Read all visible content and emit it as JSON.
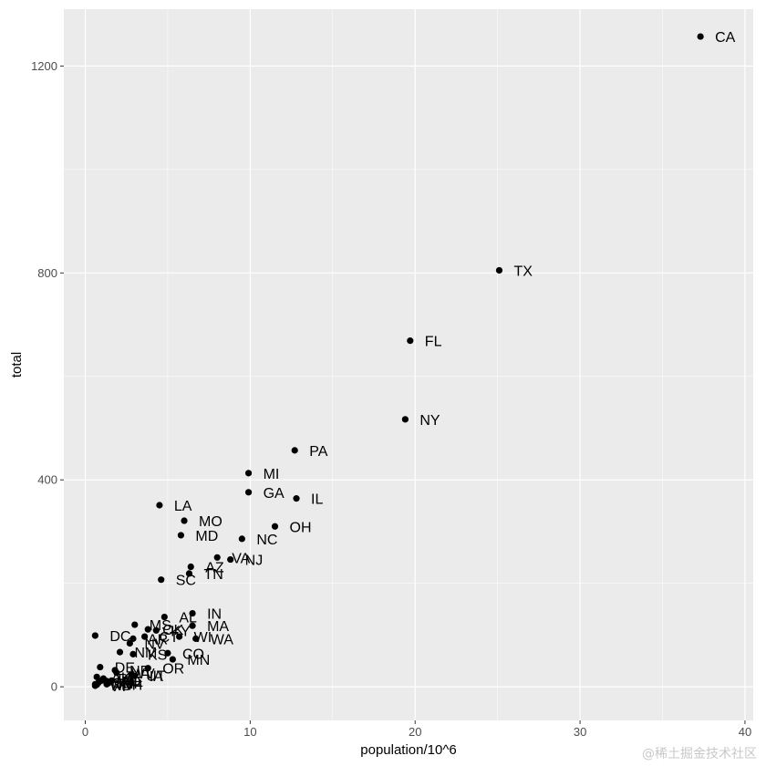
{
  "chart_data": {
    "type": "scatter",
    "xlabel": "population/10^6",
    "ylabel": "total",
    "xlim": [
      -1.3,
      40.5
    ],
    "ylim": [
      -65,
      1310
    ],
    "x_ticks": [
      0,
      10,
      20,
      30,
      40
    ],
    "y_ticks": [
      0,
      400,
      800,
      1200
    ],
    "grid": true,
    "colors": {
      "panel": "#ebebeb",
      "grid_major": "#ffffff",
      "point": "#000000"
    },
    "points": [
      {
        "label": "CA",
        "x": 37.3,
        "y": 1257
      },
      {
        "label": "TX",
        "x": 25.1,
        "y": 805
      },
      {
        "label": "FL",
        "x": 19.7,
        "y": 669
      },
      {
        "label": "NY",
        "x": 19.4,
        "y": 517
      },
      {
        "label": "PA",
        "x": 12.7,
        "y": 457
      },
      {
        "label": "MI",
        "x": 9.9,
        "y": 413
      },
      {
        "label": "GA",
        "x": 9.9,
        "y": 376
      },
      {
        "label": "IL",
        "x": 12.8,
        "y": 364
      },
      {
        "label": "LA",
        "x": 4.5,
        "y": 351
      },
      {
        "label": "MO",
        "x": 6.0,
        "y": 321
      },
      {
        "label": "OH",
        "x": 11.5,
        "y": 310
      },
      {
        "label": "MD",
        "x": 5.8,
        "y": 293
      },
      {
        "label": "NC",
        "x": 9.5,
        "y": 286
      },
      {
        "label": "VA",
        "x": 8.0,
        "y": 250
      },
      {
        "label": "NJ",
        "x": 8.8,
        "y": 246
      },
      {
        "label": "AZ",
        "x": 6.4,
        "y": 232
      },
      {
        "label": "TN",
        "x": 6.3,
        "y": 219
      },
      {
        "label": "SC",
        "x": 4.6,
        "y": 207
      },
      {
        "label": "IN",
        "x": 6.5,
        "y": 142
      },
      {
        "label": "AL",
        "x": 4.8,
        "y": 135
      },
      {
        "label": "MA",
        "x": 6.5,
        "y": 118
      },
      {
        "label": "MS",
        "x": 3.0,
        "y": 120
      },
      {
        "label": "OK",
        "x": 3.8,
        "y": 111
      },
      {
        "label": "KY",
        "x": 4.3,
        "y": 109
      },
      {
        "label": "CT",
        "x": 3.6,
        "y": 97
      },
      {
        "label": "WI",
        "x": 5.7,
        "y": 97
      },
      {
        "label": "WA",
        "x": 6.7,
        "y": 93
      },
      {
        "label": "DC",
        "x": 0.6,
        "y": 99
      },
      {
        "label": "AR",
        "x": 2.9,
        "y": 93
      },
      {
        "label": "NV",
        "x": 2.7,
        "y": 84
      },
      {
        "label": "KS",
        "x": 2.9,
        "y": 63
      },
      {
        "label": "NM",
        "x": 2.1,
        "y": 67
      },
      {
        "label": "CO",
        "x": 5.0,
        "y": 65
      },
      {
        "label": "MN",
        "x": 5.3,
        "y": 53
      },
      {
        "label": "OR",
        "x": 3.8,
        "y": 36
      },
      {
        "label": "DE",
        "x": 0.9,
        "y": 38
      },
      {
        "label": "NE",
        "x": 1.8,
        "y": 32
      },
      {
        "label": "UT",
        "x": 2.8,
        "y": 22
      },
      {
        "label": "IA",
        "x": 3.0,
        "y": 21
      },
      {
        "label": "WV",
        "x": 1.9,
        "y": 27
      },
      {
        "label": "RI",
        "x": 1.1,
        "y": 16
      },
      {
        "label": "HI",
        "x": 1.4,
        "y": 7
      },
      {
        "label": "AK",
        "x": 0.7,
        "y": 19
      },
      {
        "label": "ID",
        "x": 1.6,
        "y": 12
      },
      {
        "label": "ME",
        "x": 1.3,
        "y": 11
      },
      {
        "label": "MT",
        "x": 1.0,
        "y": 12
      },
      {
        "label": "SD",
        "x": 0.8,
        "y": 8
      },
      {
        "label": "WY",
        "x": 0.6,
        "y": 5
      },
      {
        "label": "NH",
        "x": 1.3,
        "y": 5
      },
      {
        "label": "ND",
        "x": 0.7,
        "y": 4
      },
      {
        "label": "VT",
        "x": 0.6,
        "y": 2
      }
    ]
  },
  "watermark": "@稀土掘金技术社区"
}
